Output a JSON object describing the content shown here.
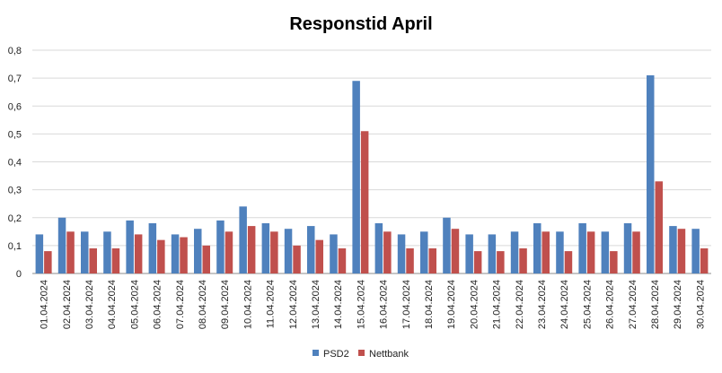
{
  "chart_data": {
    "type": "bar",
    "title": "Responstid April",
    "xlabel": "",
    "ylabel": "",
    "ylim": [
      0,
      0.8
    ],
    "yticks": [
      "0",
      "0,1",
      "0,2",
      "0,3",
      "0,4",
      "0,5",
      "0,6",
      "0,7",
      "0,8"
    ],
    "grid": true,
    "legend_position": "bottom",
    "categories": [
      "01.04.2024",
      "02.04.2024",
      "03.04.2024",
      "04.04.2024",
      "05.04.2024",
      "06.04.2024",
      "07.04.2024",
      "08.04.2024",
      "09.04.2024",
      "10.04.2024",
      "11.04.2024",
      "12.04.2024",
      "13.04.2024",
      "14.04.2024",
      "15.04.2024",
      "16.04.2024",
      "17.04.2024",
      "18.04.2024",
      "19.04.2024",
      "20.04.2024",
      "21.04.2024",
      "22.04.2024",
      "23.04.2024",
      "24.04.2024",
      "25.04.2024",
      "26.04.2024",
      "27.04.2024",
      "28.04.2024",
      "29.04.2024",
      "30.04.2024"
    ],
    "series": [
      {
        "name": "PSD2",
        "color": "#4F81BD",
        "values": [
          0.14,
          0.2,
          0.15,
          0.15,
          0.19,
          0.18,
          0.14,
          0.16,
          0.19,
          0.24,
          0.18,
          0.16,
          0.17,
          0.14,
          0.69,
          0.18,
          0.14,
          0.15,
          0.2,
          0.14,
          0.14,
          0.15,
          0.18,
          0.15,
          0.18,
          0.15,
          0.18,
          0.71,
          0.17,
          0.16
        ]
      },
      {
        "name": "Nettbank",
        "color": "#C0504D",
        "values": [
          0.08,
          0.15,
          0.09,
          0.09,
          0.14,
          0.12,
          0.13,
          0.1,
          0.15,
          0.17,
          0.15,
          0.1,
          0.12,
          0.09,
          0.51,
          0.15,
          0.09,
          0.09,
          0.16,
          0.08,
          0.08,
          0.09,
          0.15,
          0.08,
          0.15,
          0.08,
          0.15,
          0.33,
          0.16,
          0.09
        ]
      }
    ]
  }
}
